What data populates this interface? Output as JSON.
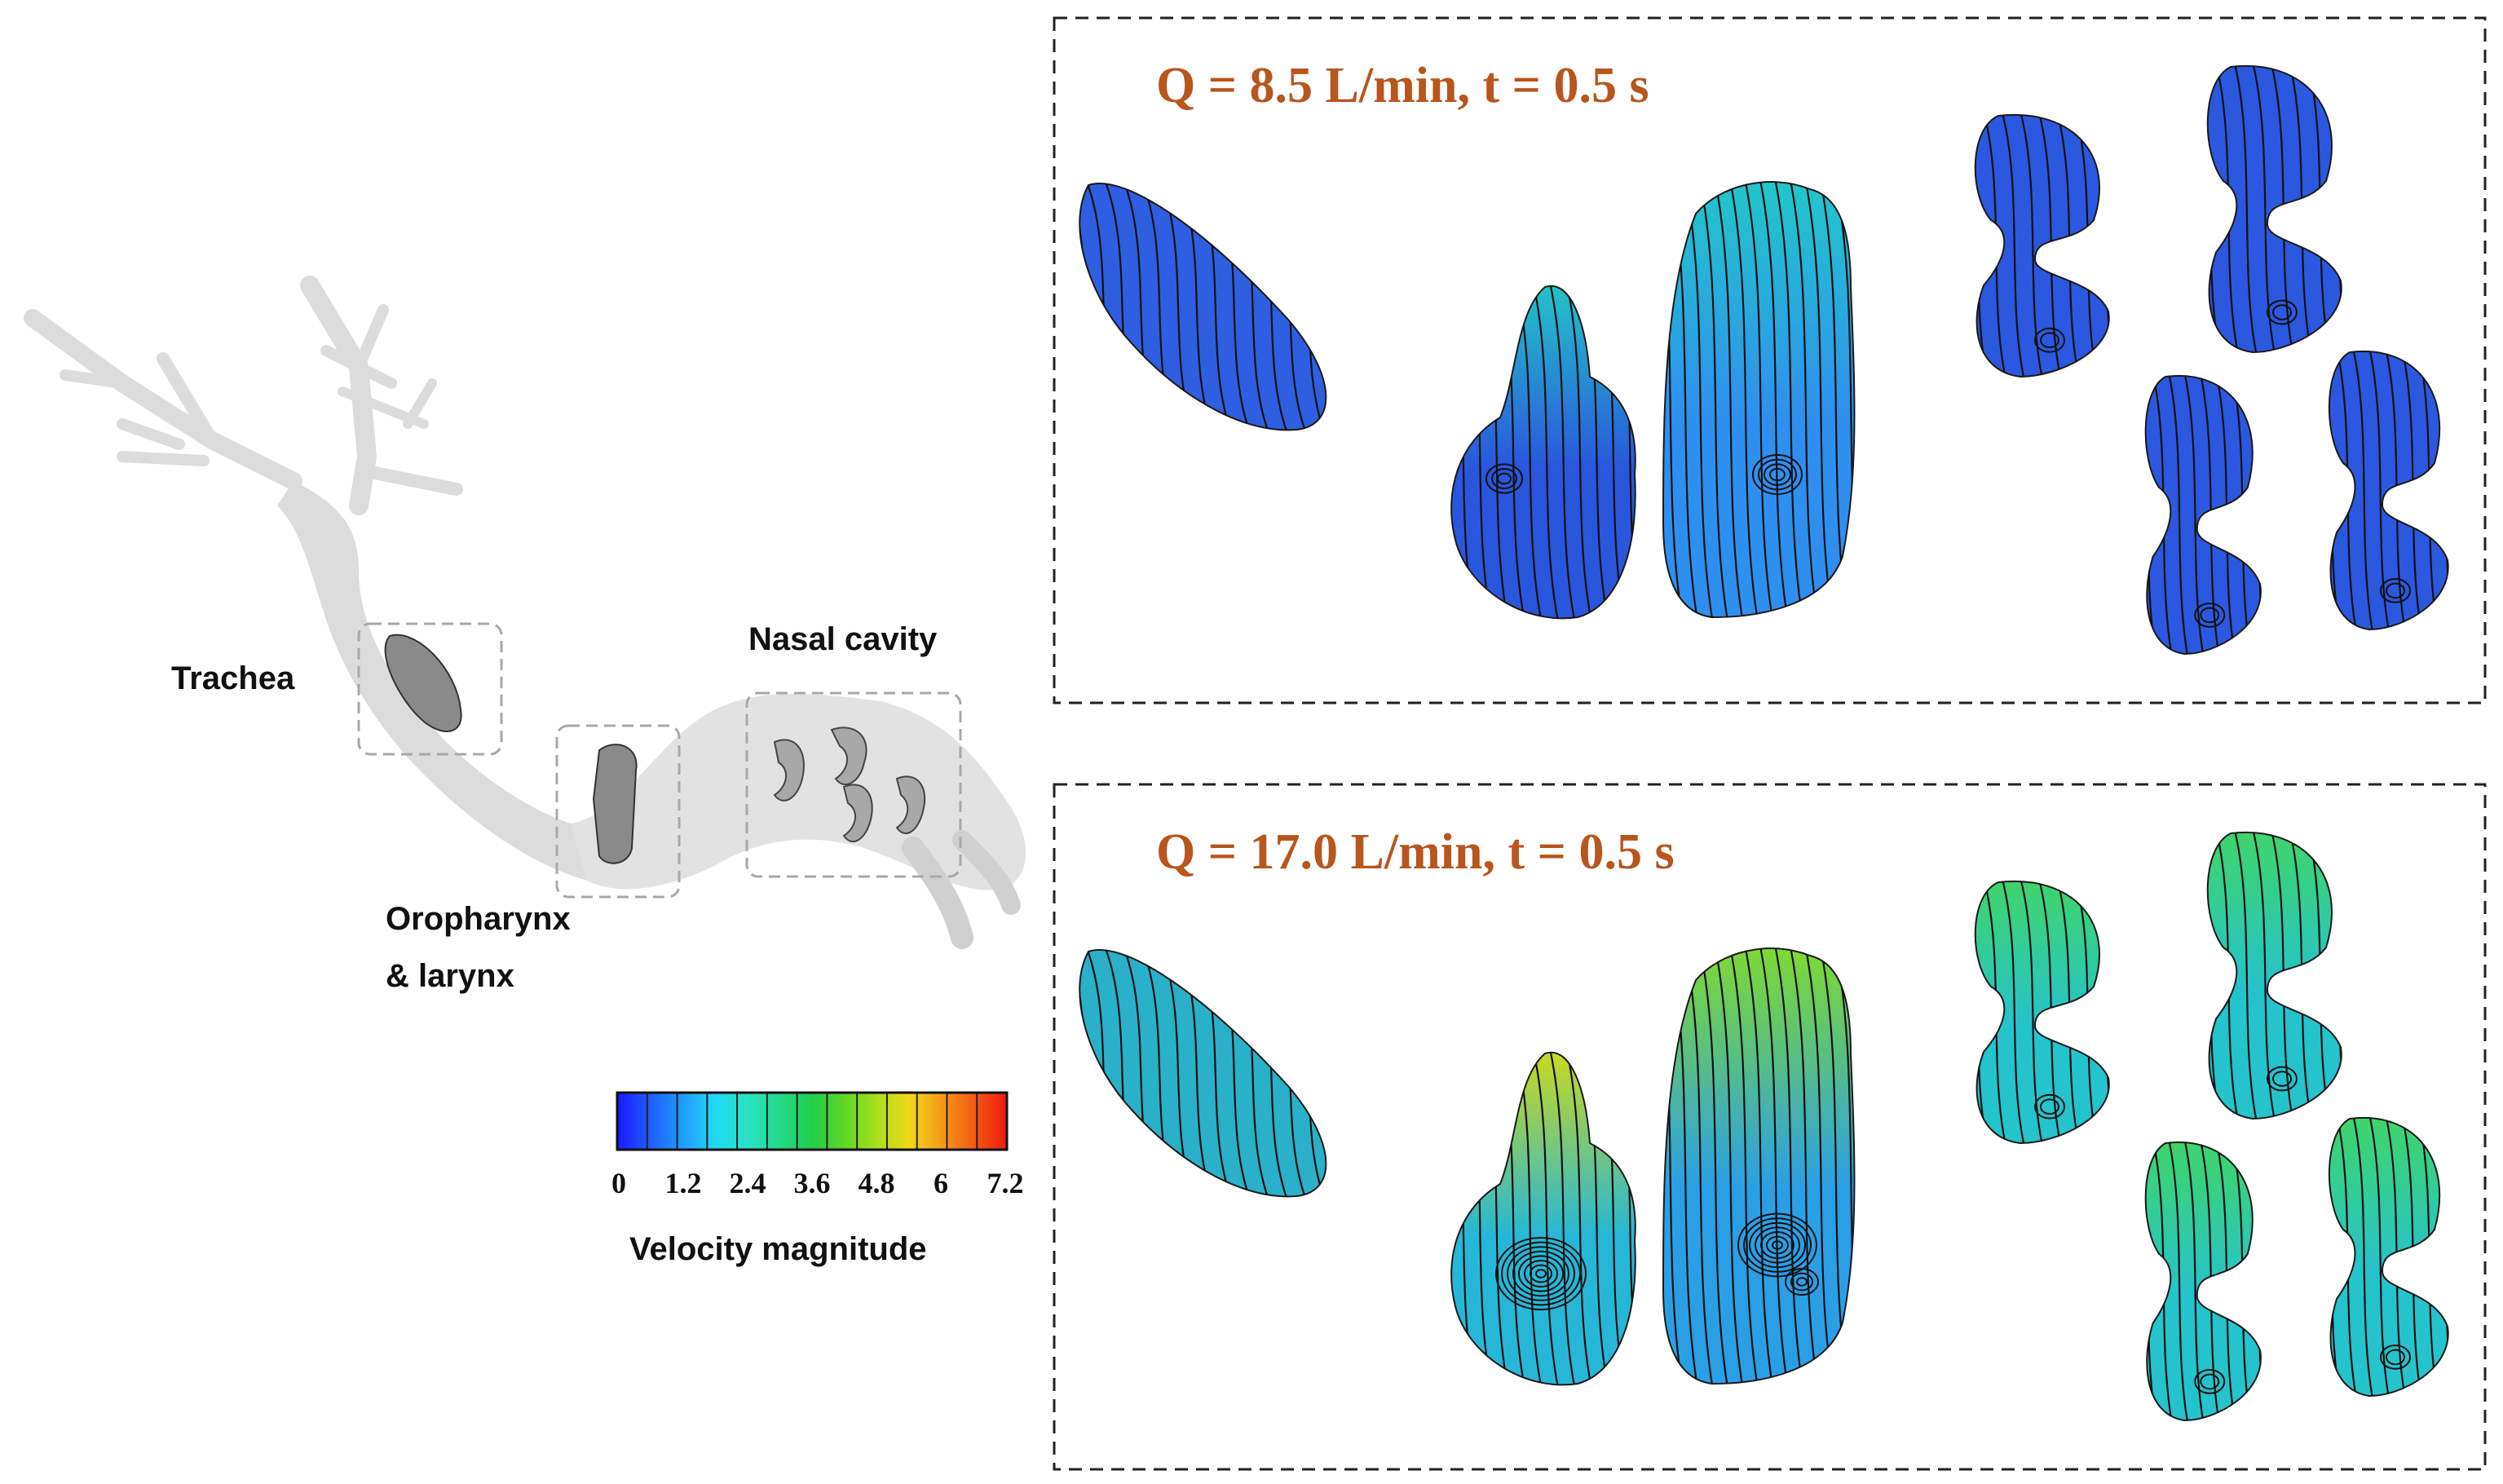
{
  "anatomy": {
    "trachea_label": "Trachea",
    "oropharynx_label_line1": "Oropharynx",
    "oropharynx_label_line2": "& larynx",
    "nasal_label": "Nasal cavity"
  },
  "colorbar": {
    "title": "Velocity magnitude",
    "ticks": [
      "0",
      "1.2",
      "2.4",
      "3.6",
      "4.8",
      "6",
      "7.2"
    ],
    "colors": [
      "#1a1aff",
      "#1f5cff",
      "#1f9cff",
      "#21d7f5",
      "#27e3c2",
      "#23d98a",
      "#1fcf4a",
      "#5fd624",
      "#a8e01c",
      "#f2d81a",
      "#f59a18",
      "#f25a12",
      "#ee1a0e"
    ]
  },
  "panels": [
    {
      "title": "Q = 8.5 L/min, t = 0.5 s",
      "colors": {
        "trachea": "#2f5fe0",
        "oro1": "#2a56dc",
        "oro1_top": "#24c2c8",
        "oro2": "#2f8ff0",
        "oro2_top": "#22c6c9",
        "nasal": "#2b58de"
      }
    },
    {
      "title": "Q = 17.0 L/min, t = 0.5 s",
      "colors": {
        "trachea": "#2ab0c8",
        "oro1": "#27b7d6",
        "oro1_top": "#c9d81f",
        "oro2": "#2a9fe6",
        "oro2_top": "#7fd933",
        "nasal": "#25c3cc"
      }
    }
  ]
}
